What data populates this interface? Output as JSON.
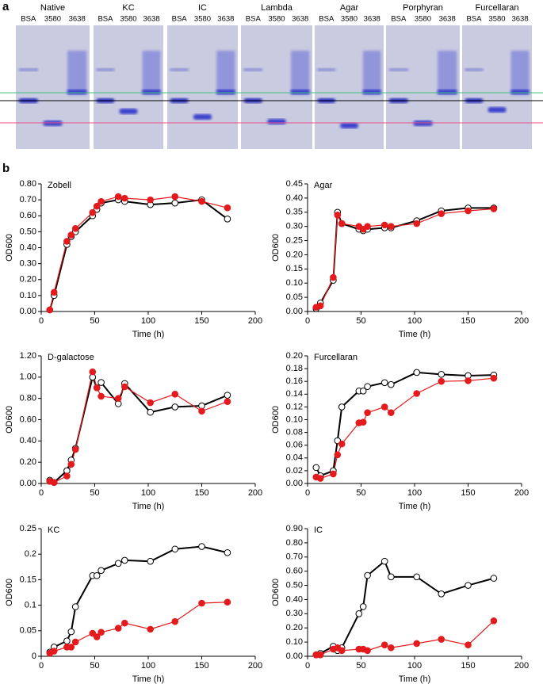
{
  "panel_a": {
    "label": "a",
    "gels": [
      {
        "title": "Native",
        "lanes": [
          "BSA",
          "3580",
          "3638"
        ]
      },
      {
        "title": "KC",
        "lanes": [
          "BSA",
          "3580",
          "3638"
        ]
      },
      {
        "title": "IC",
        "lanes": [
          "BSA",
          "3580",
          "3638"
        ]
      },
      {
        "title": "Lambda",
        "lanes": [
          "BSA",
          "3580",
          "3638"
        ]
      },
      {
        "title": "Agar",
        "lanes": [
          "BSA",
          "3580",
          "3638"
        ]
      },
      {
        "title": "Porphyran",
        "lanes": [
          "BSA",
          "3580",
          "3638"
        ]
      },
      {
        "title": "Furcellaran",
        "lanes": [
          "BSA",
          "3580",
          "3638"
        ]
      }
    ]
  },
  "panel_b": {
    "label": "b"
  },
  "chart_data": [
    {
      "type": "line",
      "title": "Zobell",
      "x_label": "Time (h)",
      "y_label": "OD600",
      "x": [
        8,
        12,
        24,
        28,
        32,
        48,
        52,
        56,
        72,
        78,
        102,
        125,
        150,
        174
      ],
      "series": [
        {
          "color": "#000000",
          "marker": "open",
          "values": [
            0.01,
            0.1,
            0.42,
            0.47,
            0.5,
            0.6,
            0.64,
            0.68,
            0.7,
            0.69,
            0.67,
            0.68,
            0.7,
            0.58
          ]
        },
        {
          "color": "#e41a1c",
          "marker": "filled",
          "values": [
            0.01,
            0.12,
            0.44,
            0.48,
            0.52,
            0.62,
            0.66,
            0.69,
            0.72,
            0.71,
            0.7,
            0.72,
            0.69,
            0.65
          ]
        }
      ],
      "xlim": [
        0,
        200
      ],
      "xticks": [
        0,
        50,
        100,
        150,
        200
      ],
      "ylim": [
        0,
        0.8
      ],
      "yticks": [
        {
          "value": 0,
          "label": "0.00"
        },
        {
          "value": 0.1,
          "label": "0.10"
        },
        {
          "value": 0.2,
          "label": "0.20"
        },
        {
          "value": 0.3,
          "label": "0.30"
        },
        {
          "value": 0.4,
          "label": "0.40"
        },
        {
          "value": 0.5,
          "label": "0.50"
        },
        {
          "value": 0.6,
          "label": "0.60"
        },
        {
          "value": 0.7,
          "label": "0.70"
        },
        {
          "value": 0.8,
          "label": "0.80"
        }
      ]
    },
    {
      "type": "line",
      "title": "Agar",
      "x_label": "Time (h)",
      "y_label": "OD600",
      "x": [
        8,
        12,
        24,
        28,
        32,
        48,
        52,
        56,
        72,
        78,
        102,
        125,
        150,
        174
      ],
      "series": [
        {
          "color": "#000000",
          "marker": "open",
          "values": [
            0.01,
            0.03,
            0.11,
            0.35,
            0.31,
            0.29,
            0.285,
            0.29,
            0.295,
            0.295,
            0.32,
            0.355,
            0.365,
            0.365
          ]
        },
        {
          "color": "#e41a1c",
          "marker": "filled",
          "values": [
            0.015,
            0.02,
            0.12,
            0.34,
            0.31,
            0.3,
            0.29,
            0.3,
            0.305,
            0.3,
            0.31,
            0.345,
            0.355,
            0.362
          ]
        }
      ],
      "xlim": [
        0,
        200
      ],
      "xticks": [
        0,
        50,
        100,
        150,
        200
      ],
      "ylim": [
        0,
        0.45
      ],
      "yticks": [
        {
          "value": 0,
          "label": "0.00"
        },
        {
          "value": 0.05,
          "label": "0.05"
        },
        {
          "value": 0.1,
          "label": "0.10"
        },
        {
          "value": 0.15,
          "label": "0.15"
        },
        {
          "value": 0.2,
          "label": "0.20"
        },
        {
          "value": 0.25,
          "label": "0.25"
        },
        {
          "value": 0.3,
          "label": "0.30"
        },
        {
          "value": 0.35,
          "label": "0.35"
        },
        {
          "value": 0.4,
          "label": "0.40"
        },
        {
          "value": 0.45,
          "label": "0.45"
        }
      ]
    },
    {
      "type": "line",
      "title": "D-galactose",
      "x_label": "Time (h)",
      "y_label": "OD600",
      "x": [
        8,
        12,
        24,
        28,
        32,
        48,
        52,
        56,
        72,
        78,
        102,
        125,
        150,
        174
      ],
      "series": [
        {
          "color": "#000000",
          "marker": "open",
          "values": [
            0.03,
            0.01,
            0.12,
            0.22,
            0.33,
            1.0,
            0.9,
            0.95,
            0.75,
            0.94,
            0.67,
            0.72,
            0.73,
            0.83
          ]
        },
        {
          "color": "#e41a1c",
          "marker": "filled",
          "values": [
            0.02,
            0.01,
            0.07,
            0.18,
            0.32,
            1.05,
            0.9,
            0.82,
            0.8,
            0.91,
            0.76,
            0.84,
            0.68,
            0.77
          ]
        }
      ],
      "xlim": [
        0,
        200
      ],
      "xticks": [
        0,
        50,
        100,
        150,
        200
      ],
      "ylim": [
        0,
        1.2
      ],
      "yticks": [
        {
          "value": 0,
          "label": "0.00"
        },
        {
          "value": 0.2,
          "label": "0.20"
        },
        {
          "value": 0.4,
          "label": "0.40"
        },
        {
          "value": 0.6,
          "label": "0.60"
        },
        {
          "value": 0.8,
          "label": "0.80"
        },
        {
          "value": 1,
          "label": "1.00"
        },
        {
          "value": 1.2,
          "label": "1.20"
        }
      ]
    },
    {
      "type": "line",
      "title": "Furcellaran",
      "x_label": "Time (h)",
      "y_label": "OD600",
      "x": [
        8,
        12,
        24,
        28,
        32,
        48,
        52,
        56,
        72,
        78,
        102,
        125,
        150,
        174
      ],
      "series": [
        {
          "color": "#000000",
          "marker": "open",
          "values": [
            0.025,
            0.012,
            0.02,
            0.067,
            0.12,
            0.145,
            0.145,
            0.152,
            0.158,
            0.155,
            0.174,
            0.171,
            0.169,
            0.17
          ]
        },
        {
          "color": "#e41a1c",
          "marker": "filled",
          "values": [
            0.01,
            0.008,
            0.015,
            0.045,
            0.062,
            0.095,
            0.096,
            0.111,
            0.12,
            0.111,
            0.141,
            0.16,
            0.161,
            0.165
          ]
        }
      ],
      "xlim": [
        0,
        200
      ],
      "xticks": [
        0,
        50,
        100,
        150,
        200
      ],
      "ylim": [
        0,
        0.2
      ],
      "yticks": [
        {
          "value": 0,
          "label": "0.00"
        },
        {
          "value": 0.02,
          "label": "0.02"
        },
        {
          "value": 0.04,
          "label": "0.04"
        },
        {
          "value": 0.06,
          "label": "0.06"
        },
        {
          "value": 0.08,
          "label": "0.08"
        },
        {
          "value": 0.1,
          "label": "0.10"
        },
        {
          "value": 0.12,
          "label": "0.12"
        },
        {
          "value": 0.14,
          "label": "0.14"
        },
        {
          "value": 0.16,
          "label": "0.16"
        },
        {
          "value": 0.18,
          "label": "0.18"
        },
        {
          "value": 0.2,
          "label": "0.20"
        }
      ]
    },
    {
      "type": "line",
      "title": "KC",
      "x_label": "Time (h)",
      "y_label": "OD600",
      "x": [
        8,
        12,
        24,
        28,
        32,
        48,
        52,
        56,
        72,
        78,
        102,
        125,
        150,
        174
      ],
      "series": [
        {
          "color": "#000000",
          "marker": "open",
          "values": [
            0.008,
            0.018,
            0.03,
            0.048,
            0.097,
            0.158,
            0.158,
            0.168,
            0.182,
            0.188,
            0.186,
            0.21,
            0.215,
            0.203
          ]
        },
        {
          "color": "#e41a1c",
          "marker": "filled",
          "values": [
            0.006,
            0.01,
            0.018,
            0.018,
            0.028,
            0.045,
            0.038,
            0.047,
            0.055,
            0.065,
            0.053,
            0.068,
            0.104,
            0.106
          ]
        }
      ],
      "xlim": [
        0,
        200
      ],
      "xticks": [
        0,
        50,
        100,
        150,
        200
      ],
      "ylim": [
        0,
        0.25
      ],
      "yticks": [
        0,
        0.05,
        0.1,
        0.15,
        0.2,
        0.25
      ]
    },
    {
      "type": "line",
      "title": "IC",
      "x_label": "Time (h)",
      "y_label": "OD600",
      "x": [
        8,
        12,
        24,
        28,
        32,
        48,
        52,
        56,
        72,
        78,
        102,
        125,
        150,
        174
      ],
      "series": [
        {
          "color": "#000000",
          "marker": "open",
          "values": [
            0.01,
            0.02,
            0.07,
            0.04,
            0.06,
            0.3,
            0.35,
            0.57,
            0.67,
            0.56,
            0.56,
            0.44,
            0.5,
            0.55
          ]
        },
        {
          "color": "#e41a1c",
          "marker": "filled",
          "values": [
            0.01,
            0.01,
            0.05,
            0.06,
            0.04,
            0.05,
            0.05,
            0.04,
            0.08,
            0.06,
            0.09,
            0.12,
            0.08,
            0.25
          ]
        }
      ],
      "xlim": [
        0,
        200
      ],
      "xticks": [
        0,
        50,
        100,
        150,
        200
      ],
      "ylim": [
        0,
        0.9
      ],
      "yticks": [
        {
          "value": 0,
          "label": "0.00"
        },
        {
          "value": 0.1,
          "label": "0.10"
        },
        {
          "value": 0.2,
          "label": "0.20"
        },
        {
          "value": 0.3,
          "label": "0.30"
        },
        {
          "value": 0.4,
          "label": "0.40"
        },
        {
          "value": 0.5,
          "label": "0.50"
        },
        {
          "value": 0.6,
          "label": "0.60"
        },
        {
          "value": 0.7,
          "label": "0.70"
        },
        {
          "value": 0.8,
          "label": "0.80"
        },
        {
          "value": 0.9,
          "label": "0.90"
        }
      ]
    }
  ]
}
